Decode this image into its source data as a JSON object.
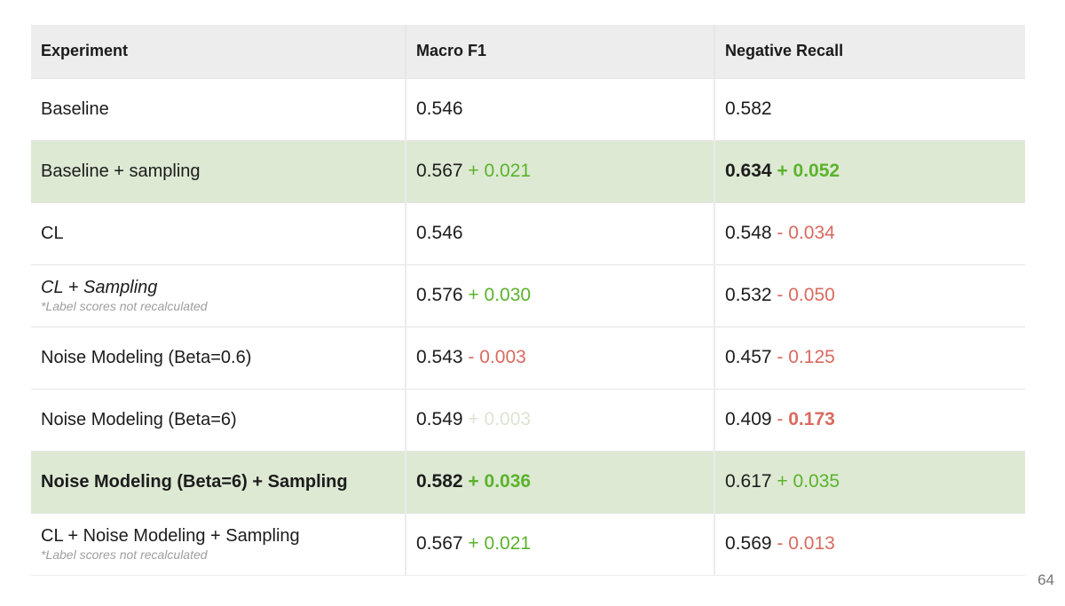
{
  "page": {
    "number": "64"
  },
  "colors": {
    "positive_delta_green": "#5ab32b",
    "negative_delta_red": "#d96a5f",
    "faded_delta_green": "#dde4d2",
    "highlight_row_bg": "#dde9d3",
    "header_bg": "#ededed"
  },
  "table": {
    "headers": [
      "Experiment",
      "Macro F1",
      "Negative Recall"
    ],
    "rows": [
      {
        "highlight": false,
        "experiment": "Baseline",
        "f1": {
          "value": "0.546"
        },
        "nr": {
          "value": "0.582"
        }
      },
      {
        "highlight": true,
        "experiment": "Baseline + sampling",
        "f1": {
          "value": "0.567",
          "sign": "+",
          "delta": "0.021",
          "tone": "green"
        },
        "nr": {
          "value": "0.634",
          "value_weight": "bold",
          "sign": "+",
          "sign_weight": "bold",
          "delta": "0.052",
          "delta_weight": "bold",
          "tone": "green"
        }
      },
      {
        "highlight": false,
        "experiment": "CL",
        "f1": {
          "value": "0.546"
        },
        "nr": {
          "value": "0.548",
          "sign": "-",
          "delta": "0.034",
          "tone": "red"
        }
      },
      {
        "highlight": false,
        "experiment": "CL + Sampling",
        "experiment_em": "italic",
        "note": "*Label scores not recalculated",
        "f1": {
          "value": "0.576",
          "sign": "+",
          "delta": "0.030",
          "tone": "green"
        },
        "nr": {
          "value": "0.532",
          "sign": "-",
          "delta": "0.050",
          "tone": "red"
        }
      },
      {
        "highlight": false,
        "experiment": "Noise Modeling (Beta=0.6)",
        "f1": {
          "value": "0.543",
          "sign": "-",
          "delta": "0.003",
          "tone": "red"
        },
        "nr": {
          "value": "0.457",
          "sign": "-",
          "delta": "0.125",
          "tone": "red"
        }
      },
      {
        "highlight": false,
        "experiment": "Noise Modeling (Beta=6)",
        "f1": {
          "value": "0.549",
          "sign": "+",
          "delta": "0.003",
          "tone": "faded"
        },
        "nr": {
          "value": "0.409",
          "sign": "-",
          "delta": "0.173",
          "delta_weight": "bold",
          "tone": "red"
        }
      },
      {
        "highlight": true,
        "experiment": "Noise Modeling (Beta=6) + Sampling",
        "experiment_em": "bold",
        "f1": {
          "value": "0.582",
          "value_weight": "bold",
          "sign": "+",
          "sign_weight": "bold",
          "delta": "0.036",
          "delta_weight": "bold",
          "tone": "green"
        },
        "nr": {
          "value": "0.617",
          "sign": "+",
          "delta": "0.035",
          "tone": "green"
        }
      },
      {
        "highlight": false,
        "experiment": "CL + Noise Modeling + Sampling",
        "note": "*Label scores not recalculated",
        "f1": {
          "value": "0.567",
          "sign": "+",
          "delta": "0.021",
          "tone": "green"
        },
        "nr": {
          "value": "0.569",
          "sign": "-",
          "delta": "0.013",
          "tone": "red"
        }
      }
    ]
  }
}
